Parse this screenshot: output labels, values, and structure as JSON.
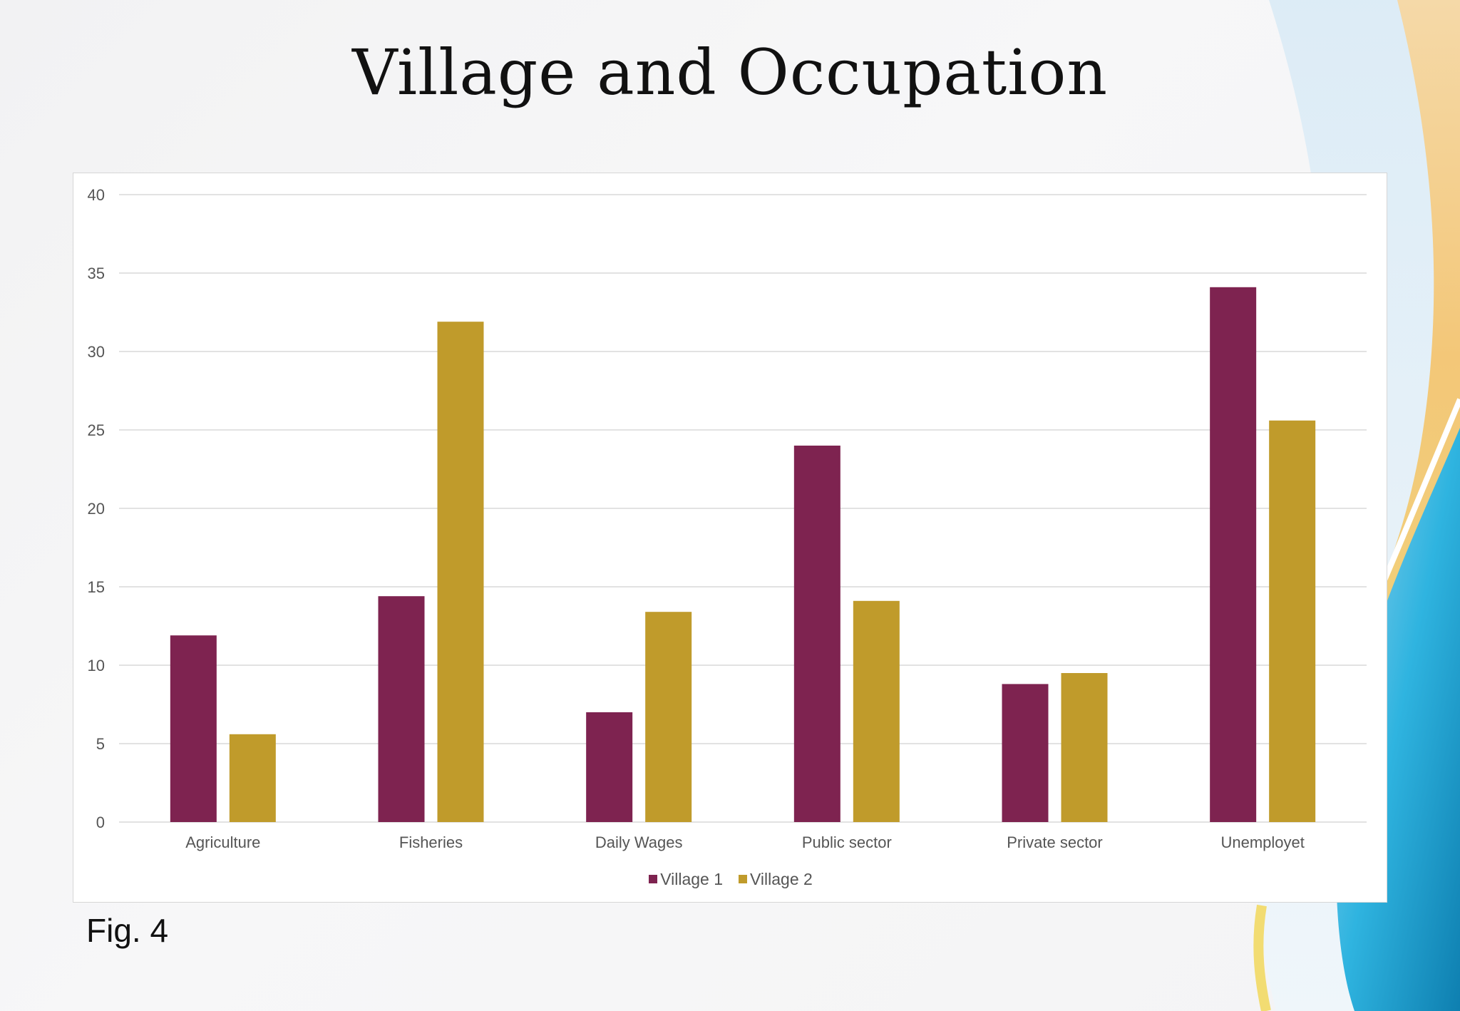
{
  "slide": {
    "title": "Village and Occupation",
    "caption": "Fig. 4"
  },
  "colors": {
    "village1": "#7e2350",
    "village2": "#c09b2b",
    "gridline": "#d9d9d9",
    "decor_blue": "#1fa7d6",
    "decor_gold": "#f3c778"
  },
  "chart_data": {
    "type": "bar",
    "categories": [
      "Agriculture",
      "Fisheries",
      "Daily Wages",
      "Public sector",
      "Private sector",
      "Unemployet"
    ],
    "series": [
      {
        "name": "Village 1",
        "values": [
          11.9,
          14.4,
          7.0,
          24.0,
          8.8,
          34.1
        ]
      },
      {
        "name": "Village 2",
        "values": [
          5.6,
          31.9,
          13.4,
          14.1,
          9.5,
          25.6
        ]
      }
    ],
    "ylim": [
      0,
      40
    ],
    "yticks": [
      0,
      5,
      10,
      15,
      20,
      25,
      30,
      35,
      40
    ],
    "grid": true,
    "legend_position": "bottom"
  }
}
